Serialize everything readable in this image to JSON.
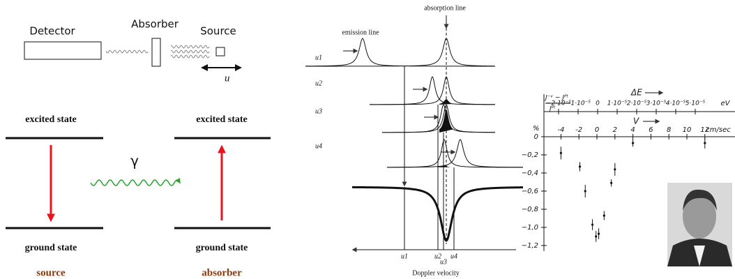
{
  "setup": {
    "detector": "Detector",
    "absorber": "Absorber",
    "source": "Source",
    "velocity": "u"
  },
  "levels": {
    "left_excited": "excited state",
    "right_excited": "excited state",
    "left_ground": "ground state",
    "right_ground": "ground state",
    "gamma": "γ",
    "left_caption": "source",
    "right_caption": "absorber"
  },
  "spectra": {
    "absorption_label": "absorption line",
    "emission_label": "emission line",
    "rows": [
      "u1",
      "u2",
      "u3",
      "u4"
    ],
    "axis_labels": [
      "u1",
      "u2",
      "u3",
      "u4"
    ],
    "axis_title": "Doppler velocity"
  },
  "plot": {
    "y_unit": "%",
    "y_numerator": "J⁻ᵛ − Jᴾᵗ",
    "y_denominator": "Jᴾᵗ",
    "top_title": "ΔE",
    "top_unit": "eV",
    "x_title": "V",
    "x_unit": "cm/sec",
    "top_ticks": [
      {
        "value": -2e-05,
        "label": "−2·10⁻⁵"
      },
      {
        "value": -1e-05,
        "label": "−1·10⁻⁵"
      },
      0,
      {
        "value": 1e-05,
        "label": "1·10⁻⁵"
      },
      {
        "value": 2e-05,
        "label": "2·10⁻⁵"
      },
      {
        "value": 3e-05,
        "label": "3·10⁻⁵"
      },
      {
        "value": 4e-05,
        "label": "4·10⁻⁵"
      },
      {
        "value": 5e-05,
        "label": "5·10⁻⁵"
      }
    ],
    "xticks": [
      -4,
      -2,
      0,
      2,
      4,
      6,
      8,
      10,
      12
    ],
    "yticks": [
      0,
      {
        "value": -0.2,
        "label": "−0,2"
      },
      {
        "value": -0.4,
        "label": "−0,4"
      },
      {
        "value": -0.6,
        "label": "−0,6"
      },
      {
        "value": -0.8,
        "label": "−0,8"
      },
      {
        "value": -1.0,
        "label": "−1,0"
      },
      {
        "value": -1.2,
        "label": "−1,2"
      }
    ],
    "x": [
      -4,
      -1.9,
      -1.3,
      -0.5,
      -0.1,
      0.2,
      0.8,
      1.6,
      2,
      4,
      12
    ],
    "values": [
      -0.18,
      -0.33,
      -0.6,
      -0.97,
      -1.1,
      -1.07,
      -0.87,
      -0.51,
      -0.36,
      -0.07,
      -0.07
    ],
    "errors": [
      0.07,
      0.05,
      0.07,
      0.06,
      0.06,
      0.06,
      0.05,
      0.04,
      0.07,
      0.04,
      0.06
    ]
  }
}
